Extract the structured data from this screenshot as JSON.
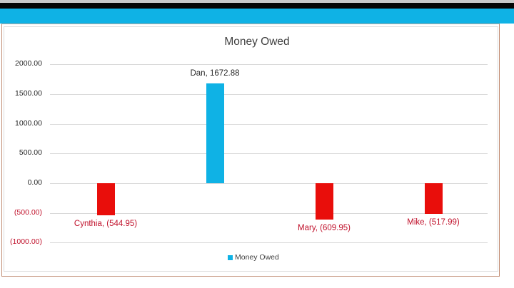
{
  "header": {
    "bar_color": "#0fb2e5"
  },
  "chart_data": {
    "type": "bar",
    "title": "Money Owed",
    "xlabel": "",
    "ylabel": "",
    "categories": [
      "Cynthia",
      "Dan",
      "Mary",
      "Mike"
    ],
    "series": [
      {
        "name": "Money Owed",
        "values": [
          -544.95,
          1672.88,
          -609.95,
          -517.99
        ]
      }
    ],
    "data_labels": [
      "Cynthia, (544.95)",
      "Dan, 1672.88",
      "Mary, (609.95)",
      "Mike, (517.99)"
    ],
    "ylim": [
      -1000,
      2000
    ],
    "yticks": [
      "2000.00",
      "1500.00",
      "1000.00",
      "500.00",
      "0.00",
      "(500.00)",
      "(1000.00)"
    ],
    "ytick_values": [
      2000,
      1500,
      1000,
      500,
      0,
      -500,
      -1000
    ],
    "grid": true,
    "legend": {
      "position": "bottom",
      "entries": [
        "Money Owed"
      ]
    },
    "colors": {
      "positive": "#0fb2e5",
      "negative": "#e90e0b",
      "negative_text": "#c0102a",
      "text": "#262626"
    }
  }
}
